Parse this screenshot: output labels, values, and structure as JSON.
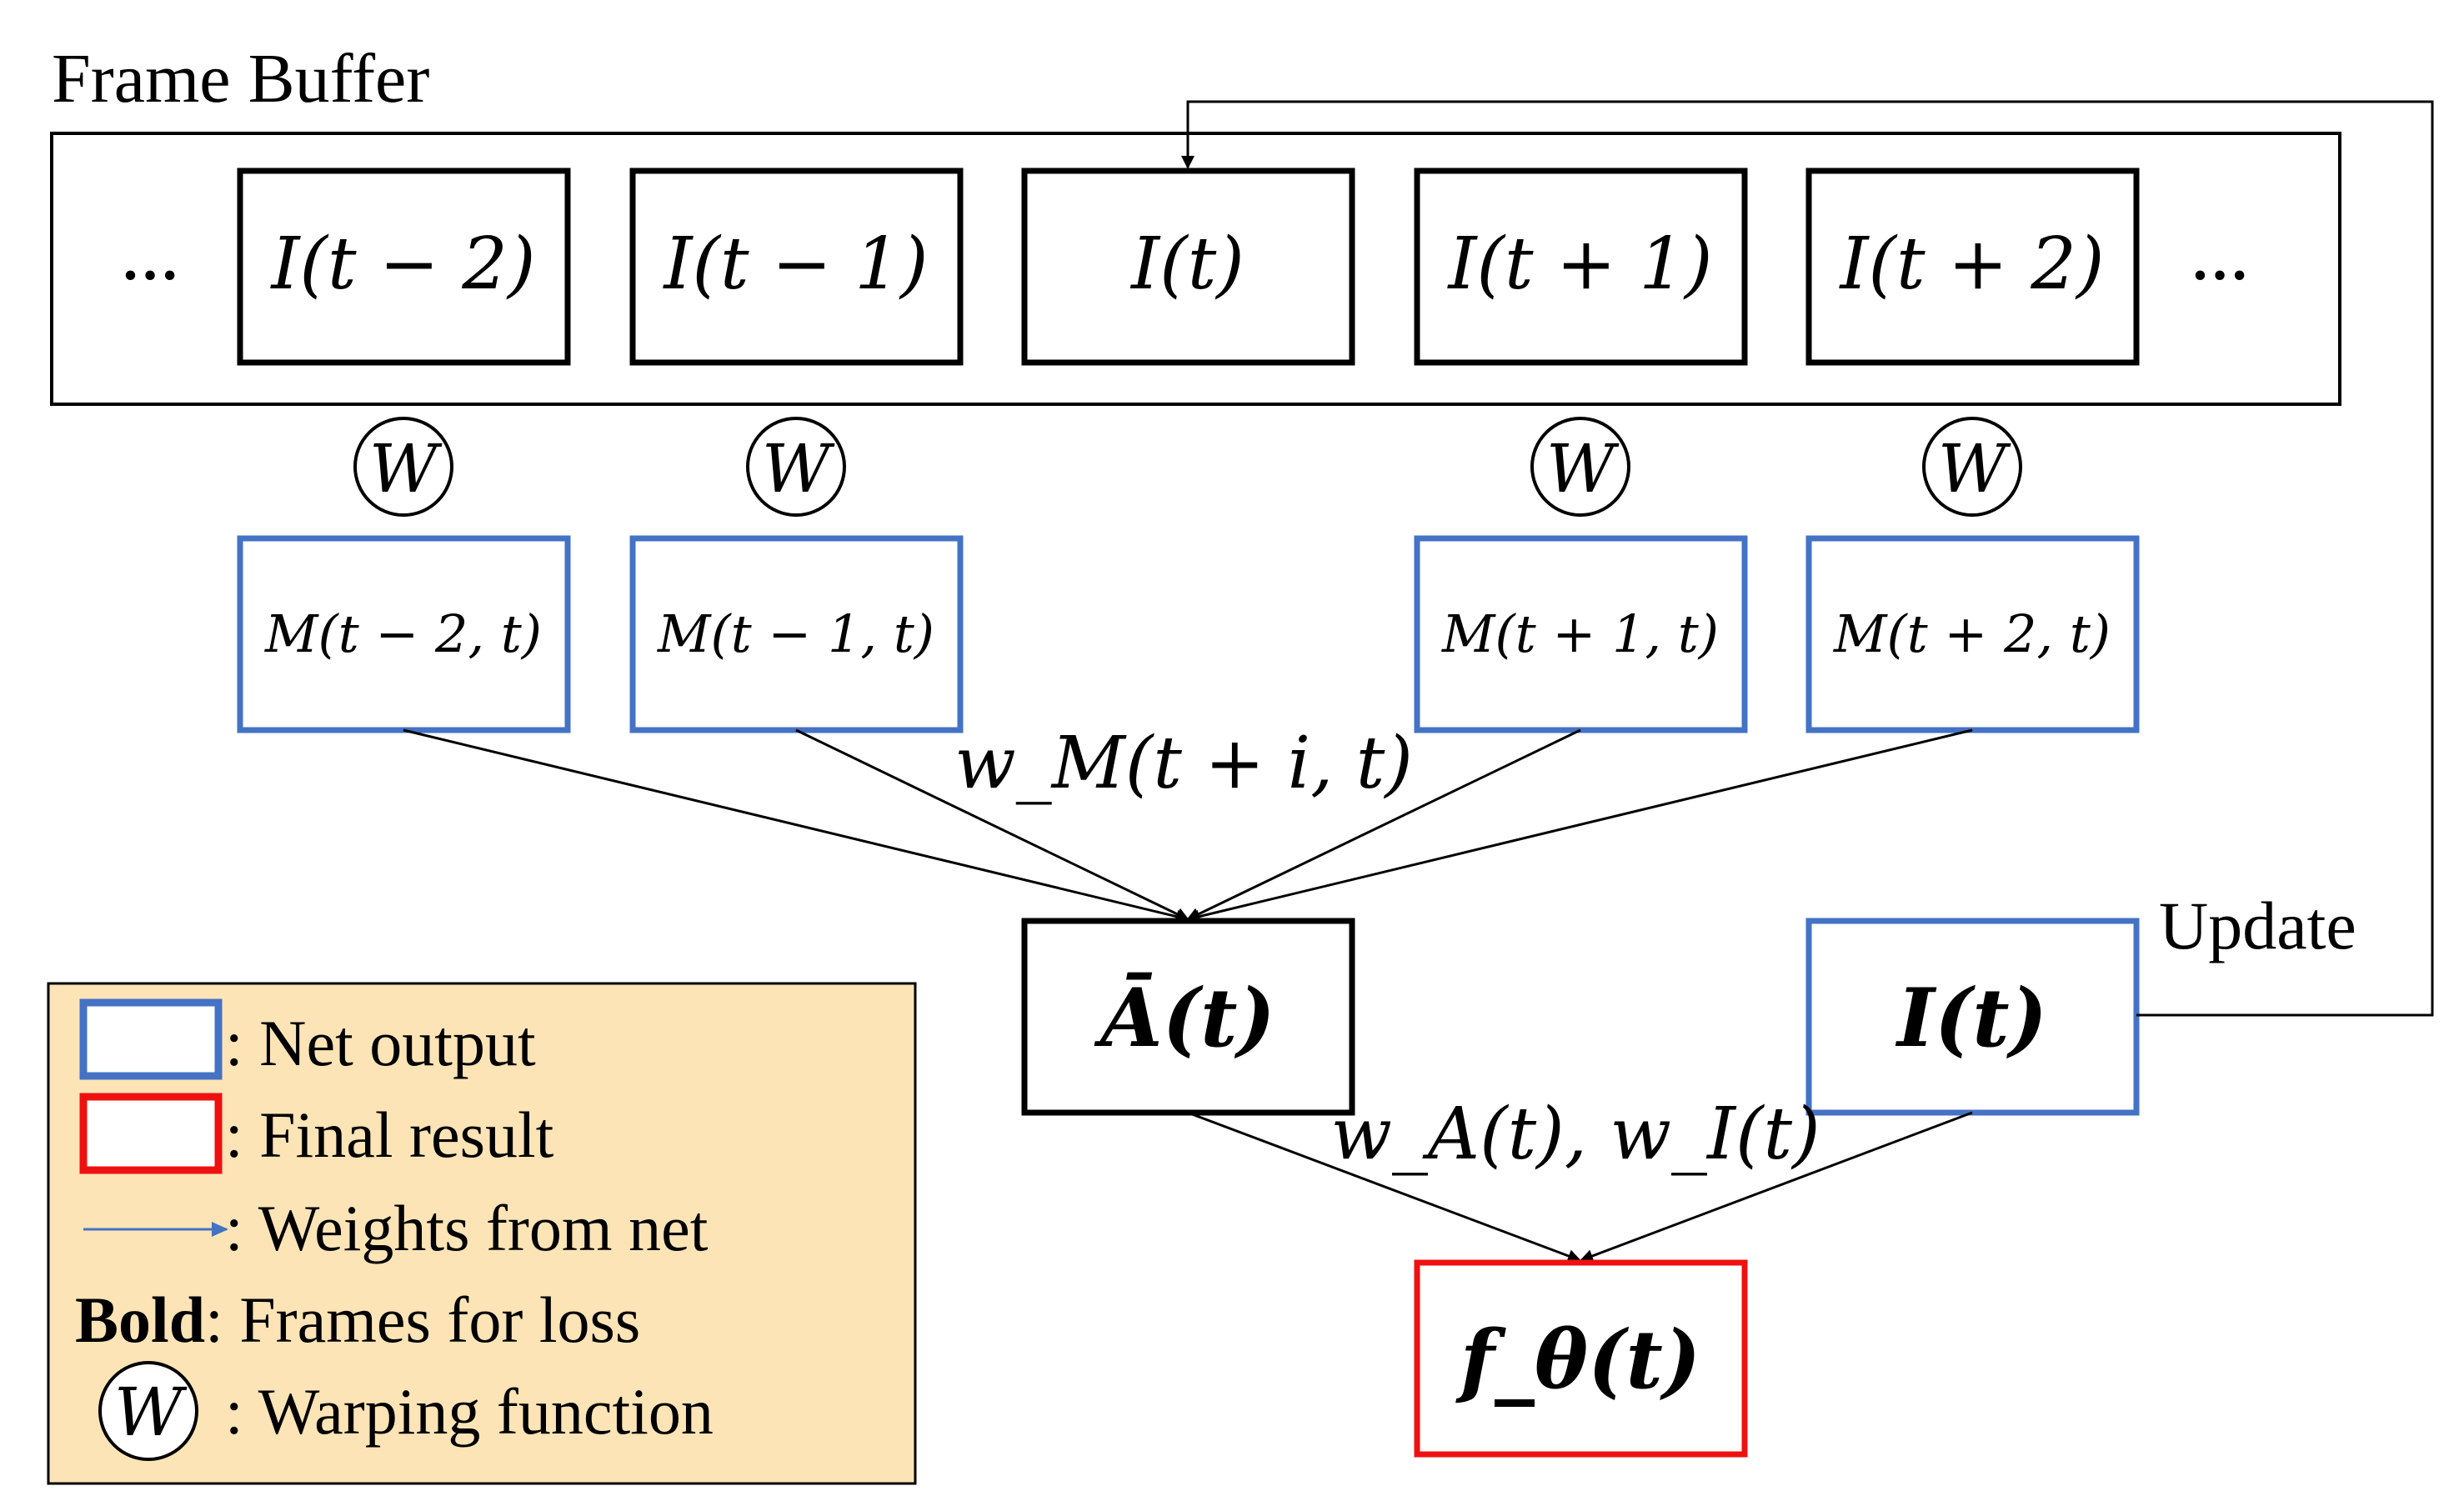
{
  "title": "Frame Buffer",
  "frames": [
    {
      "id": "frame-t-minus-2",
      "label": "I(t − 2)"
    },
    {
      "id": "frame-t-minus-1",
      "label": "I(t − 1)"
    },
    {
      "id": "frame-t",
      "label": "I(t)"
    },
    {
      "id": "frame-t-plus-1",
      "label": "I(t + 1)"
    },
    {
      "id": "frame-t-plus-2",
      "label": "I(t + 2)"
    }
  ],
  "ellipsis": "…",
  "warp_symbol": "W",
  "motions": [
    {
      "id": "motion-t-minus-2",
      "label": "M(t − 2, t)"
    },
    {
      "id": "motion-t-minus-1",
      "label": "M(t − 1, t)"
    },
    {
      "id": "motion-t-plus-1",
      "label": "M(t + 1, t)"
    },
    {
      "id": "motion-t-plus-2",
      "label": "M(t + 2, t)"
    }
  ],
  "weight_motion": "w_M(t + i, t)",
  "aggregate": "Ā(t)",
  "current": "I(t)",
  "update": "Update",
  "weight_final": "w_A(t), w_I(t)",
  "final": "f_θ(t)",
  "colors": {
    "blue": "#4472C4",
    "red": "#EE1111",
    "black": "#000000",
    "legend_bg": "#FCE4B6"
  },
  "legend": {
    "net_output": ": Net output",
    "final_result": ": Final result",
    "weights": ": Weights from net",
    "bold_word": "Bold",
    "bold_rest": ": Frames for loss",
    "warping": ": Warping function"
  }
}
